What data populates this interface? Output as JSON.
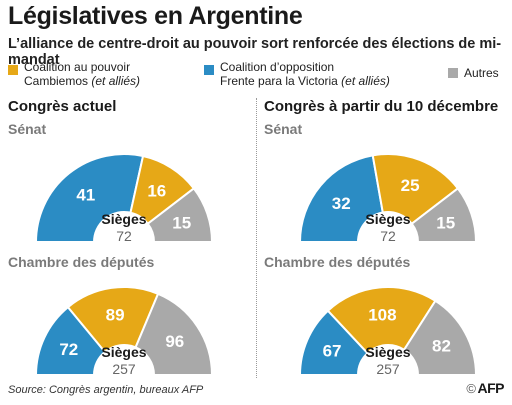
{
  "header": {
    "title": "Législatives en Argentine",
    "subtitle": "L’alliance de centre-droit au pouvoir sort renforcée des élections de mi-mandat"
  },
  "legend": [
    {
      "key": "cambiemos",
      "line1": "Coalition au pouvoir",
      "line2_main": "Cambiemos",
      "line2_italic": " (et alliés)",
      "color": "#e6a817"
    },
    {
      "key": "fpv",
      "line1": "Coalition d’opposition",
      "line2_main": "Frente para la Victoria",
      "line2_italic": " (et alliés)",
      "color": "#2b8cc4"
    },
    {
      "key": "autres",
      "line1": "Autres",
      "line2_main": "",
      "line2_italic": "",
      "color": "#a9a9a9"
    }
  ],
  "sections": {
    "left": "Congrès actuel",
    "right": "Congrès à partir du 10 décembre"
  },
  "chambers": {
    "senate": "Sénat",
    "deputies": "Chambre des députés"
  },
  "totals_label": "Sièges",
  "colors": {
    "fpv": "#2b8cc4",
    "cambiemos": "#e6a817",
    "autres": "#a9a9a9"
  },
  "chart_data": [
    {
      "type": "pie",
      "panel": "senate-current",
      "title": "Sénat",
      "total": "72",
      "series": [
        {
          "name": "Frente para la Victoria",
          "value": 41
        },
        {
          "name": "Cambiemos",
          "value": 16
        },
        {
          "name": "Autres",
          "value": 15
        }
      ]
    },
    {
      "type": "pie",
      "panel": "senate-future",
      "title": "Sénat",
      "total": "72",
      "series": [
        {
          "name": "Frente para la Victoria",
          "value": 32
        },
        {
          "name": "Cambiemos",
          "value": 25
        },
        {
          "name": "Autres",
          "value": 15
        }
      ]
    },
    {
      "type": "pie",
      "panel": "deputies-current",
      "title": "Chambre des députés",
      "total": "257",
      "series": [
        {
          "name": "Frente para la Victoria",
          "value": 72
        },
        {
          "name": "Cambiemos",
          "value": 89
        },
        {
          "name": "Autres",
          "value": 96
        }
      ]
    },
    {
      "type": "pie",
      "panel": "deputies-future",
      "title": "Chambre des députés",
      "total": "257",
      "series": [
        {
          "name": "Frente para la Victoria",
          "value": 67
        },
        {
          "name": "Cambiemos",
          "value": 108
        },
        {
          "name": "Autres",
          "value": 82
        }
      ]
    }
  ],
  "footer": {
    "source": "Source: Congrès argentin, bureaux AFP",
    "copyright": "©",
    "agency": "AFP"
  }
}
